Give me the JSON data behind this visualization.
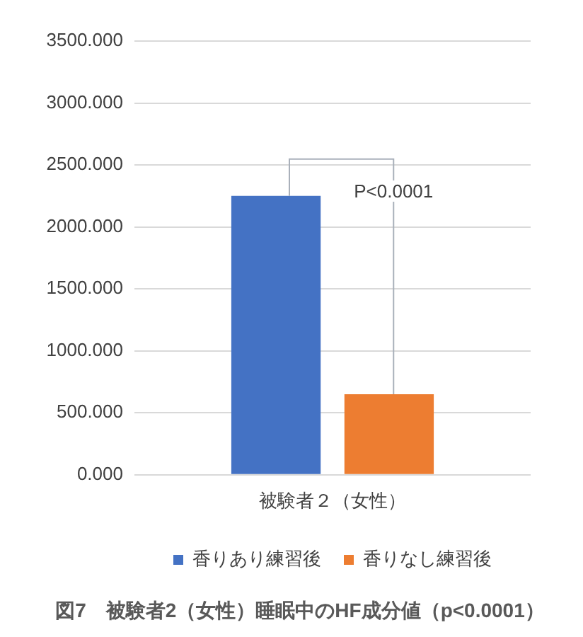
{
  "chart_data": {
    "type": "bar",
    "title": "図7　被験者2（女性）睡眠中のHF成分値（p<0.0001）",
    "categories": [
      "被験者２（女性）"
    ],
    "series": [
      {
        "name": "香りあり練習後",
        "color": "#4472c4",
        "values": [
          2250
        ]
      },
      {
        "name": "香りなし練習後",
        "color": "#ed7d31",
        "values": [
          650
        ]
      }
    ],
    "ylim": [
      0,
      3500
    ],
    "yticks": [
      {
        "value": 0,
        "label": "0.000"
      },
      {
        "value": 500,
        "label": "500.000"
      },
      {
        "value": 1000,
        "label": "1000.000"
      },
      {
        "value": 1500,
        "label": "1500.000"
      },
      {
        "value": 2000,
        "label": "2000.000"
      },
      {
        "value": 2500,
        "label": "2500.000"
      },
      {
        "value": 3000,
        "label": "3000.000"
      },
      {
        "value": 3500,
        "label": "3500.000"
      }
    ],
    "grid": "y",
    "legend": "bottom",
    "annotations": [
      "P<0.0001"
    ]
  }
}
